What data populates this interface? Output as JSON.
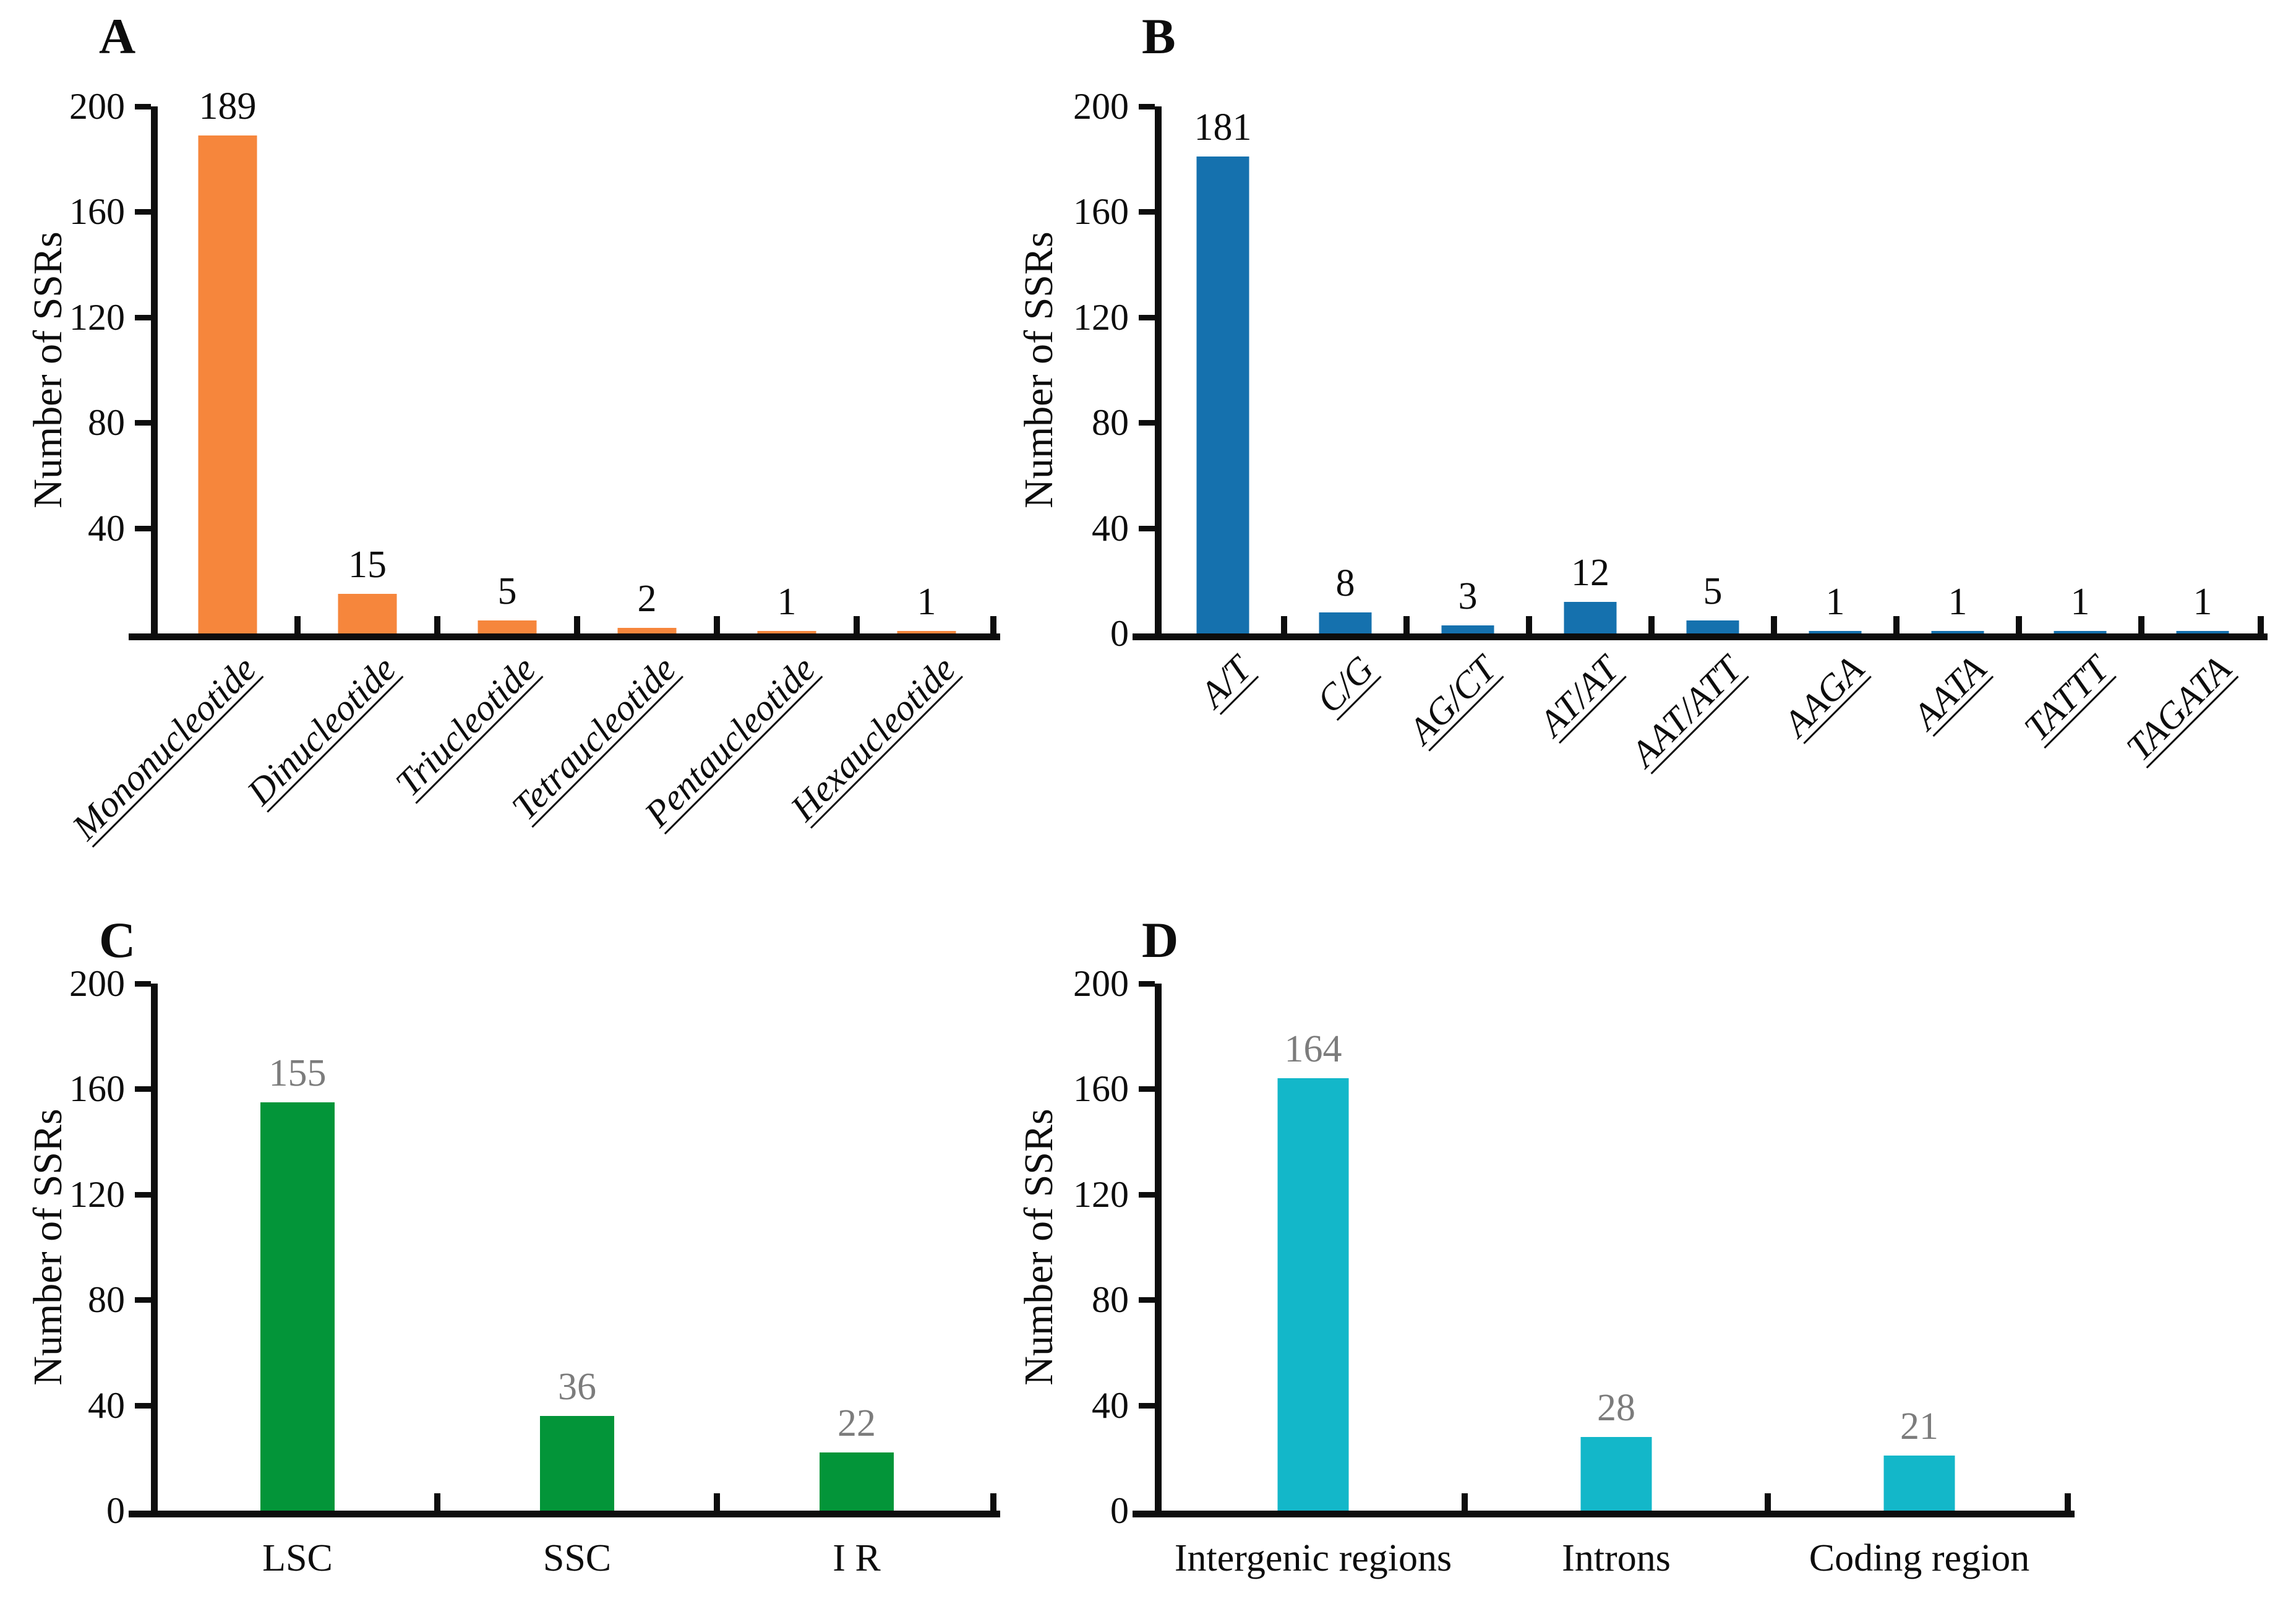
{
  "figure": {
    "background": "#ffffff",
    "y_axis_title": "Number of SSRs"
  },
  "colors": {
    "axis": "#0d0d0d",
    "value_label_dark": "#0d0d0d",
    "value_label_gray": "#7c7c7c",
    "panel_a_bar": "#f6863c",
    "panel_b_bar": "#1571ae",
    "panel_c_bar": "#039539",
    "panel_d_bar": "#13b7c9"
  },
  "chart_data": [
    {
      "type": "bar",
      "panel_label": "A",
      "title": "",
      "xlabel": "",
      "ylabel": "Number of SSRs",
      "ylim": [
        0,
        200
      ],
      "y_ticks": [
        200,
        160,
        120,
        80,
        40
      ],
      "grid": false,
      "categories": [
        "Mononucleotide",
        "Dinucleotide",
        "Triucleotide",
        "Tetraucleotide",
        "Pentaucleotide",
        "Hexaucleotide"
      ],
      "values": [
        189,
        15,
        5,
        2,
        1,
        1
      ],
      "bar_color": "#f6863c",
      "value_label_color": "#0d0d0d",
      "x_tick_label_style": "rotated-45-italic-underline"
    },
    {
      "type": "bar",
      "panel_label": "B",
      "title": "",
      "xlabel": "",
      "ylabel": "Number of SSRs",
      "ylim": [
        0,
        200
      ],
      "y_ticks": [
        200,
        160,
        120,
        80,
        40,
        0
      ],
      "grid": false,
      "categories": [
        "A/T",
        "C/G",
        "AG/CT",
        "AT/AT",
        "AAT/ATT",
        "AAGA",
        "AATA",
        "TATTT",
        "TAGATA"
      ],
      "values": [
        181,
        8,
        3,
        12,
        5,
        1,
        1,
        1,
        1
      ],
      "bar_color": "#1571ae",
      "value_label_color": "#0d0d0d",
      "x_tick_label_style": "rotated-45-italic-underline"
    },
    {
      "type": "bar",
      "panel_label": "C",
      "title": "",
      "xlabel": "",
      "ylabel": "Number of SSRs",
      "ylim": [
        0,
        200
      ],
      "y_ticks": [
        200,
        160,
        120,
        80,
        40,
        0
      ],
      "grid": false,
      "categories": [
        "LSC",
        "SSC",
        "I R"
      ],
      "values": [
        155,
        36,
        22
      ],
      "bar_color": "#039539",
      "value_label_color": "#7c7c7c",
      "x_tick_label_style": "horizontal"
    },
    {
      "type": "bar",
      "panel_label": "D",
      "title": "",
      "xlabel": "",
      "ylabel": "Number of SSRs",
      "ylim": [
        0,
        200
      ],
      "y_ticks": [
        200,
        160,
        120,
        80,
        40,
        0
      ],
      "grid": false,
      "categories": [
        "Intergenic regions",
        "Introns",
        "Coding region"
      ],
      "values": [
        164,
        28,
        21
      ],
      "bar_color": "#13b7c9",
      "value_label_color": "#7c7c7c",
      "x_tick_label_style": "horizontal"
    }
  ]
}
